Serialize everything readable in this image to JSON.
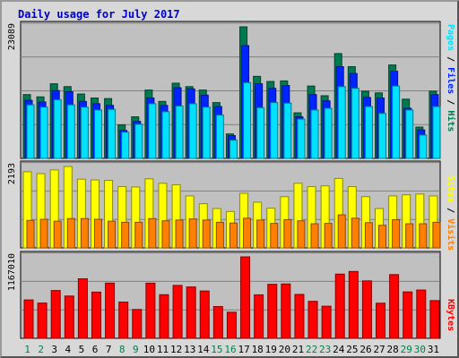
{
  "title": "Daily usage for July 2017",
  "colors": {
    "background": "#d8d8d8",
    "plot_bg": "#c0c0c0",
    "hits": "#007850",
    "files": "#0024ff",
    "pages": "#00e0ff",
    "visits": "#ff8000",
    "sites": "#ffff00",
    "kbytes": "#ff0000",
    "weekday_label": "#000000",
    "weekend_label": "#00804a",
    "title": "#0000cc"
  },
  "right_labels": {
    "top": [
      "Pages",
      "Files",
      "Hits"
    ],
    "middle": [
      "Sites",
      "Visits"
    ],
    "bottom": [
      "KBytes"
    ],
    "separator": " / "
  },
  "chart_data": [
    {
      "type": "bar",
      "panel": "hits_files_pages",
      "ymax_label": "23089",
      "ymax": 23089,
      "categories": [
        "1",
        "2",
        "3",
        "4",
        "5",
        "6",
        "7",
        "8",
        "9",
        "10",
        "11",
        "12",
        "13",
        "14",
        "15",
        "16",
        "17",
        "18",
        "19",
        "20",
        "21",
        "22",
        "23",
        "24",
        "25",
        "26",
        "27",
        "28",
        "29",
        "30",
        "31"
      ],
      "weekend_days": [
        "1",
        "2",
        "8",
        "9",
        "15",
        "16",
        "22",
        "23",
        "29",
        "30"
      ],
      "series": [
        {
          "name": "Hits",
          "values": [
            11200,
            10800,
            13100,
            12600,
            11300,
            10600,
            10500,
            5900,
            7300,
            12000,
            10000,
            13200,
            12600,
            12000,
            9800,
            4300,
            23089,
            14400,
            13500,
            13600,
            8000,
            12700,
            11000,
            18400,
            16100,
            11800,
            11500,
            16400,
            10400,
            5500,
            11800
          ]
        },
        {
          "name": "Files",
          "values": [
            10200,
            9900,
            11900,
            11700,
            10000,
            9600,
            9300,
            4900,
            6500,
            10600,
            9300,
            12400,
            12200,
            11100,
            9100,
            4000,
            19800,
            13100,
            12300,
            12800,
            7300,
            11200,
            10100,
            16100,
            14900,
            10700,
            10600,
            15300,
            8800,
            5000,
            11200
          ]
        },
        {
          "name": "Pages",
          "values": [
            9400,
            9000,
            10300,
            9400,
            9000,
            8500,
            8600,
            4600,
            6000,
            9600,
            8200,
            9200,
            9600,
            9000,
            7600,
            3200,
            13300,
            8900,
            9800,
            9700,
            6900,
            8500,
            8800,
            12600,
            12300,
            9100,
            7900,
            12700,
            8500,
            4100,
            9100
          ]
        }
      ]
    },
    {
      "type": "bar",
      "panel": "visits_sites",
      "ymax_label": "2193",
      "ymax": 2193,
      "categories": [
        "1",
        "2",
        "3",
        "4",
        "5",
        "6",
        "7",
        "8",
        "9",
        "10",
        "11",
        "12",
        "13",
        "14",
        "15",
        "16",
        "17",
        "18",
        "19",
        "20",
        "21",
        "22",
        "23",
        "24",
        "25",
        "26",
        "27",
        "28",
        "29",
        "30",
        "31"
      ],
      "series": [
        {
          "name": "Sites",
          "values": [
            2050,
            2000,
            2100,
            2193,
            1850,
            1830,
            1820,
            1650,
            1640,
            1860,
            1740,
            1700,
            1400,
            1190,
            1060,
            980,
            1470,
            1230,
            1070,
            1380,
            1740,
            1650,
            1670,
            1870,
            1650,
            1380,
            1060,
            1400,
            1430,
            1450,
            1400
          ]
        },
        {
          "name": "Visits",
          "values": [
            740,
            770,
            720,
            790,
            790,
            770,
            720,
            690,
            690,
            790,
            730,
            750,
            780,
            750,
            690,
            670,
            800,
            750,
            660,
            760,
            730,
            650,
            660,
            890,
            800,
            680,
            610,
            760,
            650,
            650,
            690
          ]
        }
      ]
    },
    {
      "type": "bar",
      "panel": "kbytes",
      "ymax_label": "1167010",
      "ymax": 1167010,
      "categories": [
        "1",
        "2",
        "3",
        "4",
        "5",
        "6",
        "7",
        "8",
        "9",
        "10",
        "11",
        "12",
        "13",
        "14",
        "15",
        "16",
        "17",
        "18",
        "19",
        "20",
        "21",
        "22",
        "23",
        "24",
        "25",
        "26",
        "27",
        "28",
        "29",
        "30",
        "31"
      ],
      "series": [
        {
          "name": "KBytes",
          "values": [
            550000,
            505000,
            685000,
            606000,
            853000,
            662000,
            791000,
            519000,
            413000,
            790000,
            625000,
            758000,
            736000,
            678000,
            455000,
            374000,
            1167010,
            623000,
            774000,
            779000,
            629000,
            530000,
            460000,
            920000,
            958000,
            823000,
            503000,
            913000,
            665000,
            692000,
            540000
          ]
        }
      ]
    }
  ]
}
